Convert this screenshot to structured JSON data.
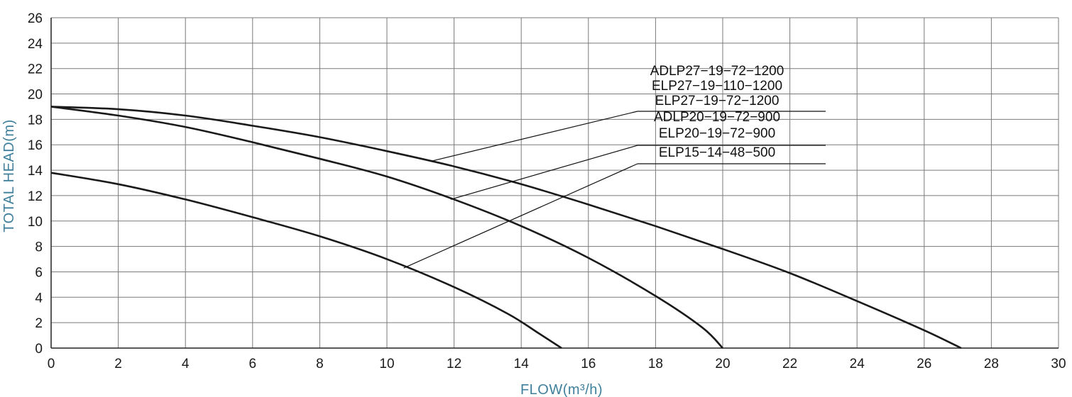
{
  "chart_data": {
    "type": "line",
    "xlabel": "FLOW(m³/h)",
    "ylabel": "TOTAL HEAD(m)",
    "xlim": [
      0,
      30
    ],
    "ylim": [
      0,
      26
    ],
    "x_ticks": [
      0,
      2,
      4,
      6,
      8,
      10,
      12,
      14,
      16,
      18,
      20,
      22,
      24,
      26,
      28,
      30
    ],
    "y_ticks": [
      0,
      2,
      4,
      6,
      8,
      10,
      12,
      14,
      16,
      18,
      20,
      22,
      24,
      26
    ],
    "grid": true,
    "labels": [
      {
        "id": "label-1",
        "text": "ADLP27−19−72−1200",
        "group": 1
      },
      {
        "id": "label-2",
        "text": "ELP27−19−110−1200",
        "group": 1
      },
      {
        "id": "label-3",
        "text": "ELP27−19−72−1200",
        "group": 1
      },
      {
        "id": "label-4",
        "text": "ADLP20−19−72−900",
        "group": 2
      },
      {
        "id": "label-5",
        "text": "ELP20−19−72−900",
        "group": 2
      },
      {
        "id": "label-6",
        "text": "ELP15−14−48−500",
        "group": 3
      }
    ],
    "series": [
      {
        "group": 1,
        "color": "#1a1a1a",
        "x": [
          0,
          2,
          4,
          6,
          8,
          10,
          12,
          14,
          16,
          18,
          20,
          22,
          24,
          26,
          27.1
        ],
        "y": [
          19.0,
          18.8,
          18.3,
          17.5,
          16.6,
          15.5,
          14.3,
          12.9,
          11.3,
          9.6,
          7.8,
          5.9,
          3.7,
          1.4,
          0
        ]
      },
      {
        "group": 2,
        "color": "#1a1a1a",
        "x": [
          0,
          2,
          4,
          6,
          8,
          10,
          12,
          14,
          16,
          18,
          19.4,
          20.0
        ],
        "y": [
          19.0,
          18.3,
          17.4,
          16.2,
          14.9,
          13.5,
          11.7,
          9.6,
          7.1,
          4.1,
          1.6,
          0
        ]
      },
      {
        "group": 3,
        "color": "#1a1a1a",
        "x": [
          0,
          2,
          4,
          6,
          8,
          10,
          12,
          13.6,
          14.5,
          15.2
        ],
        "y": [
          13.8,
          12.9,
          11.7,
          10.3,
          8.8,
          7.0,
          4.8,
          2.7,
          1.2,
          0
        ]
      }
    ],
    "leaders": [
      {
        "group": 1,
        "from": [
          11.3,
          14.7
        ],
        "to_label": "label-3"
      },
      {
        "group": 2,
        "from": [
          11.9,
          11.7
        ],
        "to_label": "label-5"
      },
      {
        "group": 3,
        "from": [
          10.5,
          6.3
        ],
        "to_label": "label-6"
      }
    ]
  }
}
